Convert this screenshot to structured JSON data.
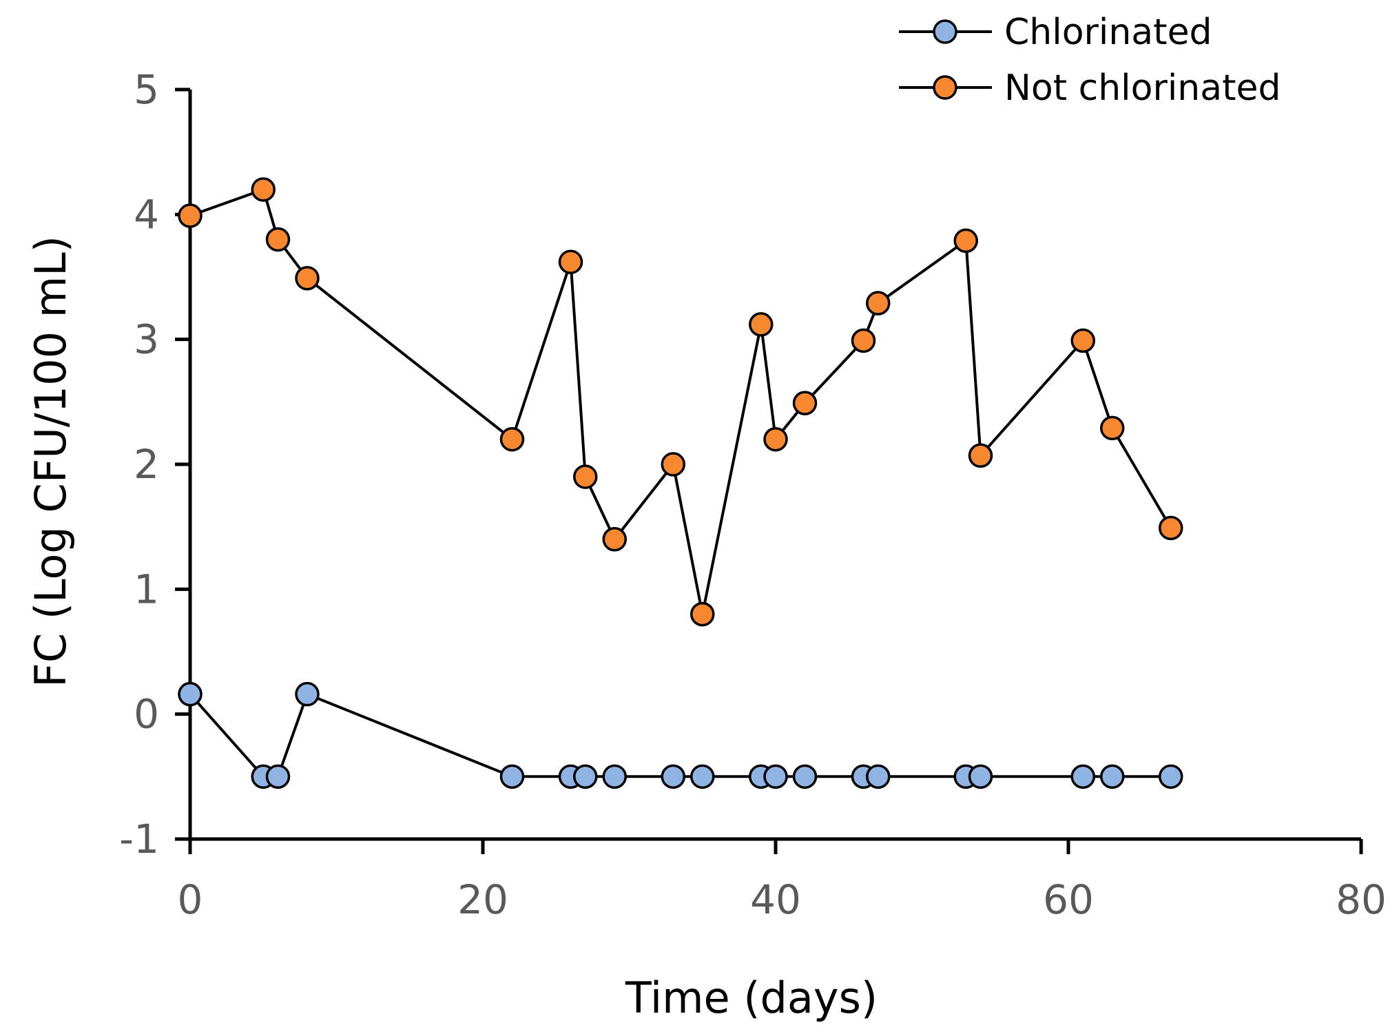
{
  "chart_data": {
    "type": "line",
    "title": "",
    "xlabel": "Time (days)",
    "ylabel": "FC (Log CFU/100 mL)",
    "xlim": [
      0,
      80
    ],
    "ylim": [
      -1,
      5
    ],
    "x_ticks": [
      0,
      20,
      40,
      60,
      80
    ],
    "y_ticks": [
      -1,
      0,
      1,
      2,
      3,
      4,
      5
    ],
    "x_tick_labels": [
      "0",
      "20",
      "40",
      "60",
      "80"
    ],
    "y_tick_labels": [
      "-1",
      "0",
      "1",
      "2",
      "3",
      "4",
      "5"
    ],
    "grid": false,
    "legend_position": "top-right",
    "series": [
      {
        "name": "Chlorinated",
        "color": "#8fb4e3",
        "x": [
          0,
          5,
          6,
          8,
          22,
          26,
          27,
          29,
          33,
          35,
          39,
          40,
          42,
          46,
          47,
          53,
          54,
          61,
          63,
          67
        ],
        "y": [
          0.16,
          -0.5,
          -0.5,
          0.16,
          -0.5,
          -0.5,
          -0.5,
          -0.5,
          -0.5,
          -0.5,
          -0.5,
          -0.5,
          -0.5,
          -0.5,
          -0.5,
          -0.5,
          -0.5,
          -0.5,
          -0.5,
          -0.5
        ]
      },
      {
        "name": "Not chlorinated",
        "color": "#f7882f",
        "x": [
          0,
          5,
          6,
          8,
          22,
          26,
          27,
          29,
          33,
          35,
          39,
          40,
          42,
          46,
          47,
          53,
          54,
          61,
          63,
          67
        ],
        "y": [
          3.99,
          4.2,
          3.8,
          3.49,
          2.2,
          3.62,
          1.9,
          1.4,
          2.0,
          0.8,
          3.12,
          2.2,
          2.49,
          2.99,
          3.29,
          3.79,
          2.07,
          2.99,
          2.29,
          1.49
        ]
      }
    ]
  }
}
